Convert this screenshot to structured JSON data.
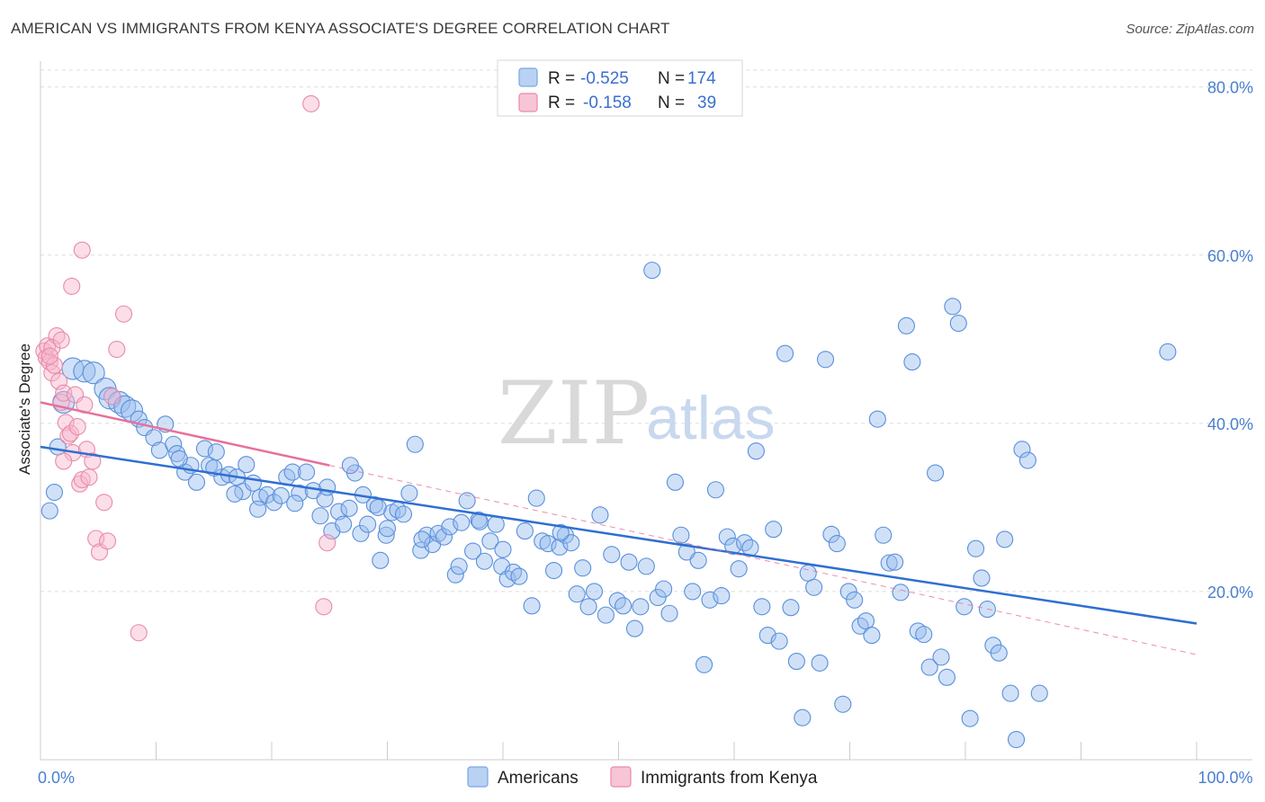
{
  "title": "AMERICAN VS IMMIGRANTS FROM KENYA ASSOCIATE'S DEGREE CORRELATION CHART",
  "source": "Source: ZipAtlas.com",
  "watermark": {
    "part1": "ZIP",
    "part2": "atlas"
  },
  "legend": {
    "rows": [
      {
        "r_label": "R =",
        "r_value": "-0.525",
        "n_label": "N =",
        "n_value": "174",
        "color": "#7aa6e6",
        "fill": "#b9d1f2"
      },
      {
        "r_label": "R =",
        "r_value": "-0.158",
        "n_label": "N =",
        "n_value": "39",
        "color": "#e98aaa",
        "fill": "#f7c5d5"
      }
    ]
  },
  "bottom_legend": [
    {
      "label": "Americans",
      "color": "#7aa6e6",
      "fill": "#b9d1f2"
    },
    {
      "label": "Immigrants from Kenya",
      "color": "#e98aaa",
      "fill": "#f7c5d5"
    }
  ],
  "chart_data": {
    "type": "scatter",
    "ylabel": "Associate's Degree",
    "xlim": [
      0,
      100
    ],
    "ylim": [
      0,
      82
    ],
    "y_ticks": [
      {
        "v": 20,
        "label": "20.0%"
      },
      {
        "v": 40,
        "label": "40.0%"
      },
      {
        "v": 60,
        "label": "60.0%"
      },
      {
        "v": 80,
        "label": "80.0%"
      }
    ],
    "x_ticks": [
      {
        "v": 0,
        "label": "0.0%"
      },
      {
        "v": 100,
        "label": "100.0%"
      }
    ],
    "grid": true,
    "series": [
      {
        "name": "Americans",
        "color": "#5a8fdc",
        "fill": "rgba(150,188,238,0.45)",
        "trend": {
          "x": [
            0,
            100
          ],
          "y": [
            37.2,
            16.2
          ],
          "color": "#2f6fd1"
        },
        "points": [
          [
            1.2,
            31.8
          ],
          [
            0.8,
            29.6
          ],
          [
            1.5,
            37.2
          ],
          [
            2.0,
            42.5
          ],
          [
            2.8,
            46.5
          ],
          [
            3.8,
            46.2
          ],
          [
            4.6,
            46.0
          ],
          [
            5.6,
            44.1
          ],
          [
            6.0,
            43.0
          ],
          [
            6.8,
            42.5
          ],
          [
            7.3,
            42.0
          ],
          [
            7.9,
            41.5
          ],
          [
            8.5,
            40.5
          ],
          [
            9.0,
            39.5
          ],
          [
            9.8,
            38.3
          ],
          [
            10.3,
            36.8
          ],
          [
            10.8,
            39.9
          ],
          [
            11.5,
            37.5
          ],
          [
            11.8,
            36.4
          ],
          [
            12.5,
            34.2
          ],
          [
            13.0,
            35.0
          ],
          [
            13.5,
            33.0
          ],
          [
            14.2,
            37.0
          ],
          [
            14.6,
            35.0
          ],
          [
            15.2,
            36.6
          ],
          [
            15.7,
            33.6
          ],
          [
            16.3,
            33.9
          ],
          [
            17.0,
            33.6
          ],
          [
            17.5,
            31.9
          ],
          [
            17.8,
            35.1
          ],
          [
            18.4,
            32.9
          ],
          [
            19.0,
            31.2
          ],
          [
            19.6,
            31.5
          ],
          [
            20.2,
            30.6
          ],
          [
            20.8,
            31.4
          ],
          [
            21.3,
            33.6
          ],
          [
            21.8,
            34.2
          ],
          [
            22.4,
            31.7
          ],
          [
            23.0,
            34.2
          ],
          [
            23.6,
            32.0
          ],
          [
            24.2,
            29.0
          ],
          [
            24.6,
            31.0
          ],
          [
            25.2,
            27.2
          ],
          [
            25.8,
            29.5
          ],
          [
            26.2,
            28.0
          ],
          [
            26.7,
            29.9
          ],
          [
            27.2,
            34.1
          ],
          [
            27.7,
            26.9
          ],
          [
            28.3,
            28.0
          ],
          [
            28.9,
            30.3
          ],
          [
            29.4,
            23.7
          ],
          [
            29.9,
            26.7
          ],
          [
            30.4,
            29.4
          ],
          [
            30.9,
            29.7
          ],
          [
            31.4,
            29.2
          ],
          [
            31.9,
            31.7
          ],
          [
            32.4,
            37.5
          ],
          [
            32.9,
            24.9
          ],
          [
            33.4,
            26.7
          ],
          [
            33.9,
            25.6
          ],
          [
            34.4,
            26.9
          ],
          [
            34.9,
            26.5
          ],
          [
            35.4,
            27.7
          ],
          [
            35.9,
            22.0
          ],
          [
            36.4,
            28.2
          ],
          [
            36.9,
            30.8
          ],
          [
            37.4,
            24.8
          ],
          [
            37.9,
            28.5
          ],
          [
            38.4,
            23.6
          ],
          [
            38.9,
            26.0
          ],
          [
            39.4,
            28.0
          ],
          [
            39.9,
            23.0
          ],
          [
            40.4,
            21.5
          ],
          [
            40.9,
            22.3
          ],
          [
            41.4,
            21.8
          ],
          [
            41.9,
            27.2
          ],
          [
            42.5,
            18.3
          ],
          [
            42.9,
            31.1
          ],
          [
            43.4,
            26.0
          ],
          [
            43.9,
            25.7
          ],
          [
            44.4,
            22.5
          ],
          [
            44.9,
            25.3
          ],
          [
            45.4,
            26.7
          ],
          [
            45.9,
            25.8
          ],
          [
            46.4,
            19.7
          ],
          [
            46.9,
            22.8
          ],
          [
            47.4,
            18.2
          ],
          [
            47.9,
            20.0
          ],
          [
            48.4,
            29.1
          ],
          [
            48.9,
            17.2
          ],
          [
            49.4,
            24.4
          ],
          [
            49.9,
            18.9
          ],
          [
            50.4,
            18.3
          ],
          [
            50.9,
            23.5
          ],
          [
            51.4,
            15.6
          ],
          [
            51.9,
            18.2
          ],
          [
            52.4,
            23.0
          ],
          [
            52.9,
            58.2
          ],
          [
            53.4,
            19.3
          ],
          [
            53.9,
            20.3
          ],
          [
            54.4,
            17.4
          ],
          [
            54.9,
            33.0
          ],
          [
            55.4,
            26.7
          ],
          [
            55.9,
            24.7
          ],
          [
            56.4,
            20.0
          ],
          [
            56.9,
            23.7
          ],
          [
            57.4,
            11.3
          ],
          [
            57.9,
            19.0
          ],
          [
            58.4,
            32.1
          ],
          [
            58.9,
            19.5
          ],
          [
            59.4,
            26.5
          ],
          [
            59.9,
            25.4
          ],
          [
            60.4,
            22.7
          ],
          [
            60.9,
            25.8
          ],
          [
            61.4,
            25.2
          ],
          [
            61.9,
            36.7
          ],
          [
            62.4,
            18.2
          ],
          [
            62.9,
            14.8
          ],
          [
            63.4,
            27.4
          ],
          [
            63.9,
            14.1
          ],
          [
            64.4,
            48.3
          ],
          [
            64.9,
            18.1
          ],
          [
            65.4,
            11.7
          ],
          [
            65.9,
            5.0
          ],
          [
            66.4,
            22.2
          ],
          [
            66.9,
            20.5
          ],
          [
            67.4,
            11.5
          ],
          [
            67.9,
            47.6
          ],
          [
            68.4,
            26.8
          ],
          [
            68.9,
            25.7
          ],
          [
            69.4,
            6.6
          ],
          [
            69.9,
            20.0
          ],
          [
            70.4,
            19.0
          ],
          [
            70.9,
            15.9
          ],
          [
            71.4,
            16.5
          ],
          [
            71.9,
            14.8
          ],
          [
            72.4,
            40.5
          ],
          [
            72.9,
            26.7
          ],
          [
            73.4,
            23.4
          ],
          [
            73.9,
            23.5
          ],
          [
            74.4,
            19.9
          ],
          [
            74.9,
            51.6
          ],
          [
            75.4,
            47.3
          ],
          [
            75.9,
            15.3
          ],
          [
            76.4,
            14.9
          ],
          [
            76.9,
            11.0
          ],
          [
            77.4,
            34.1
          ],
          [
            77.9,
            12.2
          ],
          [
            78.4,
            9.8
          ],
          [
            78.9,
            53.9
          ],
          [
            79.4,
            51.9
          ],
          [
            79.9,
            18.2
          ],
          [
            80.4,
            4.9
          ],
          [
            80.9,
            25.1
          ],
          [
            81.4,
            21.6
          ],
          [
            81.9,
            17.9
          ],
          [
            82.4,
            13.6
          ],
          [
            82.9,
            12.7
          ],
          [
            83.4,
            26.2
          ],
          [
            83.9,
            7.9
          ],
          [
            84.4,
            2.4
          ],
          [
            84.9,
            36.9
          ],
          [
            85.4,
            35.6
          ],
          [
            86.4,
            7.9
          ],
          [
            97.5,
            48.5
          ],
          [
            38.0,
            28.3
          ],
          [
            36.2,
            23.0
          ],
          [
            45.0,
            27.0
          ],
          [
            33.0,
            26.2
          ],
          [
            26.8,
            35.0
          ],
          [
            29.2,
            30.0
          ],
          [
            40.0,
            25.0
          ],
          [
            22.0,
            30.5
          ],
          [
            27.9,
            31.5
          ],
          [
            24.8,
            32.4
          ],
          [
            30.0,
            27.5
          ],
          [
            18.8,
            29.8
          ],
          [
            16.8,
            31.6
          ],
          [
            15.0,
            34.7
          ],
          [
            12.0,
            35.8
          ]
        ]
      },
      {
        "name": "Immigrants from Kenya",
        "color": "#e98aaa",
        "fill": "rgba(246,182,203,0.45)",
        "trend": {
          "x": [
            0,
            25
          ],
          "y": [
            42.5,
            35.0
          ],
          "color": "#e8709a",
          "dashed_to": [
            100,
            12.5
          ]
        },
        "points": [
          [
            0.3,
            48.6
          ],
          [
            0.5,
            47.8
          ],
          [
            0.6,
            49.2
          ],
          [
            0.8,
            47.3
          ],
          [
            1.0,
            46.0
          ],
          [
            1.2,
            46.9
          ],
          [
            1.4,
            50.4
          ],
          [
            1.6,
            45.0
          ],
          [
            1.8,
            42.5
          ],
          [
            2.0,
            43.6
          ],
          [
            2.2,
            40.1
          ],
          [
            2.4,
            38.5
          ],
          [
            2.6,
            38.8
          ],
          [
            2.8,
            36.5
          ],
          [
            3.0,
            43.4
          ],
          [
            3.2,
            39.6
          ],
          [
            3.4,
            32.8
          ],
          [
            3.6,
            33.3
          ],
          [
            3.8,
            42.2
          ],
          [
            4.0,
            36.9
          ],
          [
            4.2,
            33.6
          ],
          [
            4.5,
            35.5
          ],
          [
            4.8,
            26.3
          ],
          [
            5.1,
            24.7
          ],
          [
            5.5,
            30.6
          ],
          [
            5.8,
            26.0
          ],
          [
            6.2,
            43.2
          ],
          [
            6.6,
            48.8
          ],
          [
            7.2,
            53.0
          ],
          [
            8.5,
            15.1
          ],
          [
            2.7,
            56.3
          ],
          [
            3.6,
            60.6
          ],
          [
            1.0,
            49.0
          ],
          [
            1.8,
            49.9
          ],
          [
            0.8,
            48.0
          ],
          [
            23.4,
            78.0
          ],
          [
            24.5,
            18.2
          ],
          [
            24.8,
            25.8
          ],
          [
            2.0,
            35.5
          ]
        ]
      }
    ]
  }
}
